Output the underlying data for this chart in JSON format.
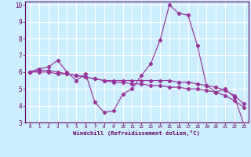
{
  "xlabel": "Windchill (Refroidissement éolien,°C)",
  "bg_color": "#cceeff",
  "grid_color": "#ffffff",
  "line_color": "#993399",
  "xlim": [
    -0.5,
    23.5
  ],
  "ylim": [
    3,
    10.2
  ],
  "x_ticks": [
    0,
    1,
    2,
    3,
    4,
    5,
    6,
    7,
    8,
    9,
    10,
    11,
    12,
    13,
    14,
    15,
    16,
    17,
    18,
    19,
    20,
    21,
    22,
    23
  ],
  "y_ticks": [
    3,
    4,
    5,
    6,
    7,
    8,
    9,
    10
  ],
  "series": [
    {
      "x": [
        0,
        1,
        2,
        3,
        4,
        5,
        6,
        7,
        8,
        9,
        10,
        11,
        12,
        13,
        14,
        15,
        16,
        17,
        18,
        19,
        20,
        21,
        22,
        23
      ],
      "y": [
        6.0,
        6.2,
        6.3,
        6.7,
        6.0,
        5.5,
        5.9,
        4.2,
        3.6,
        3.7,
        4.7,
        5.0,
        5.8,
        6.5,
        7.9,
        10.0,
        9.5,
        9.4,
        7.6,
        5.2,
        4.8,
        5.0,
        4.5,
        2.9
      ],
      "marker": "D",
      "markersize": 2.2
    },
    {
      "x": [
        0,
        1,
        2,
        3,
        4,
        5,
        6,
        7,
        8,
        9,
        10,
        11,
        12,
        13,
        14,
        15,
        16,
        17,
        18,
        19,
        20,
        21,
        22,
        23
      ],
      "y": [
        6.0,
        6.1,
        6.1,
        6.0,
        5.9,
        5.8,
        5.7,
        5.6,
        5.5,
        5.4,
        5.4,
        5.3,
        5.3,
        5.2,
        5.2,
        5.1,
        5.1,
        5.0,
        5.0,
        4.9,
        4.8,
        4.6,
        4.3,
        3.9
      ],
      "marker": "D",
      "markersize": 2.2
    },
    {
      "x": [
        0,
        1,
        2,
        3,
        4,
        5,
        6,
        7,
        8,
        9,
        10,
        11,
        12,
        13,
        14,
        15,
        16,
        17,
        18,
        19,
        20,
        21,
        22,
        23
      ],
      "y": [
        6.0,
        6.0,
        6.0,
        5.9,
        5.9,
        5.8,
        5.7,
        5.6,
        5.5,
        5.5,
        5.5,
        5.5,
        5.5,
        5.5,
        5.5,
        5.5,
        5.4,
        5.4,
        5.3,
        5.2,
        5.1,
        4.9,
        4.6,
        4.1
      ],
      "marker": "D",
      "markersize": 2.2
    }
  ]
}
